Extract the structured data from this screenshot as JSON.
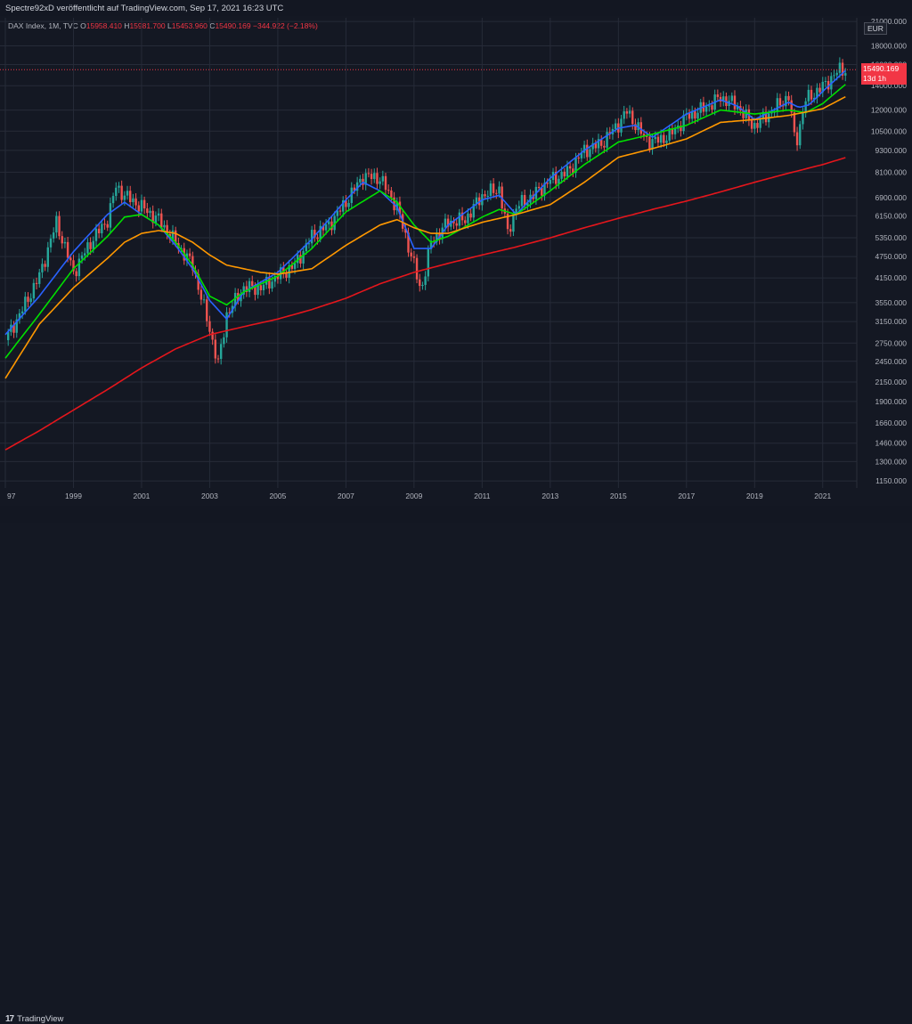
{
  "header": {
    "published": "Spectre92xD veröffentlicht auf TradingView.com, Sep 17, 2021 16:23 UTC"
  },
  "legend": {
    "symbol": "DAX Index, 1M, TVC",
    "o_label": "O",
    "o_value": "15958.410",
    "h_label": "H",
    "h_value": "15981.700",
    "l_label": "L",
    "l_value": "15453.960",
    "c_label": "C",
    "c_value": "15490.169",
    "change": "−344.922 (−2.18%)"
  },
  "price_axis": {
    "currency": "EUR",
    "last_price": "15490.169",
    "countdown": "13d 1h"
  },
  "footer": {
    "brand": "TradingView",
    "logo": "17"
  },
  "colors": {
    "background": "#141823",
    "up": "#26a69a",
    "down": "#ef5350",
    "ma_blue": "#2962ff",
    "ma_green": "#00e000",
    "ma_orange": "#ff9800",
    "ma_red": "#e5161c",
    "grid": "#262b38",
    "text": "#b2b5be"
  },
  "chart_data": {
    "type": "line",
    "title": "DAX Index, 1M, TVC",
    "y_scale": "log",
    "y_ticks": [
      1150,
      1300,
      1460,
      1660,
      1900,
      2150,
      2450,
      2750,
      3150,
      3550,
      4150,
      4750,
      5350,
      6150,
      6900,
      8100,
      9300,
      10500,
      12000,
      14000,
      16000,
      18000,
      21000
    ],
    "y_tick_labels": [
      "1150.000",
      "1300.000",
      "1460.000",
      "1660.000",
      "1900.000",
      "2150.000",
      "2450.000",
      "2750.000",
      "3150.000",
      "3550.000",
      "4150.000",
      "4750.000",
      "5350.000",
      "6150.000",
      "6900.000",
      "8100.000",
      "9300.000",
      "10500.000",
      "12000.000",
      "14000.000",
      "16000.000",
      "18000.000",
      "21000.000"
    ],
    "x_ticks": [
      "97",
      "1999",
      "2001",
      "2003",
      "2005",
      "2007",
      "2009",
      "2011",
      "2013",
      "2015",
      "2017",
      "2019",
      "2021"
    ],
    "x_range": [
      1997.0,
      2022.0
    ],
    "series": [
      {
        "color": "#26a69a",
        "style": "candles",
        "x": [
          1997.0,
          1997.5,
          1998.0,
          1998.5,
          1999.0,
          1999.5,
          2000.0,
          2000.25,
          2000.5,
          2001.0,
          2001.5,
          2002.0,
          2002.5,
          2003.0,
          2003.25,
          2003.5,
          2004.0,
          2004.5,
          2005.0,
          2005.5,
          2006.0,
          2006.5,
          2007.0,
          2007.5,
          2008.0,
          2008.5,
          2009.0,
          2009.2,
          2009.5,
          2010.0,
          2010.5,
          2011.0,
          2011.5,
          2011.75,
          2012.0,
          2012.5,
          2013.0,
          2013.5,
          2014.0,
          2014.5,
          2015.0,
          2015.25,
          2015.75,
          2016.0,
          2016.5,
          2017.0,
          2017.5,
          2018.0,
          2018.5,
          2018.9,
          2019.0,
          2019.5,
          2020.0,
          2020.2,
          2020.5,
          2021.0,
          2021.5,
          2021.7
        ],
        "values": [
          2800,
          3400,
          4200,
          5900,
          4300,
          5200,
          6000,
          7400,
          7000,
          6500,
          6000,
          5200,
          4500,
          3000,
          2400,
          3300,
          3900,
          3900,
          4200,
          4500,
          5400,
          5800,
          6700,
          7900,
          7800,
          6500,
          4500,
          3800,
          5200,
          5900,
          6000,
          7000,
          7300,
          5500,
          6500,
          7000,
          7700,
          8100,
          9300,
          9700,
          11000,
          11900,
          10100,
          9800,
          10200,
          11500,
          12100,
          13000,
          12300,
          11000,
          10900,
          11900,
          13100,
          9600,
          12800,
          13900,
          15500,
          15490
        ]
      },
      {
        "color": "#2962ff",
        "style": "line",
        "x": [
          1997.0,
          1998.0,
          1999.0,
          2000.0,
          2000.5,
          2001.0,
          2001.5,
          2002.0,
          2002.5,
          2003.0,
          2003.5,
          2004.0,
          2005.0,
          2006.0,
          2007.0,
          2007.5,
          2008.0,
          2008.5,
          2009.0,
          2009.5,
          2010.0,
          2011.0,
          2011.5,
          2012.0,
          2013.0,
          2014.0,
          2015.0,
          2015.5,
          2016.0,
          2017.0,
          2018.0,
          2018.5,
          2019.0,
          2020.0,
          2020.3,
          2020.6,
          2021.0,
          2021.7
        ],
        "values": [
          2900,
          3700,
          4900,
          6200,
          6700,
          6200,
          5800,
          5100,
          4400,
          3600,
          3200,
          3800,
          4300,
          5300,
          6800,
          7600,
          7200,
          6500,
          5000,
          5000,
          5800,
          6800,
          7000,
          6200,
          7800,
          9300,
          10700,
          10900,
          10100,
          11700,
          12800,
          12300,
          11300,
          12600,
          12200,
          12400,
          13500,
          15500
        ]
      },
      {
        "color": "#00e000",
        "style": "line",
        "x": [
          1997.0,
          1998.0,
          1999.0,
          2000.0,
          2000.5,
          2001.0,
          2001.5,
          2002.0,
          2002.5,
          2003.0,
          2003.5,
          2004.0,
          2005.0,
          2006.0,
          2007.0,
          2008.0,
          2008.5,
          2009.0,
          2009.5,
          2010.0,
          2011.0,
          2011.5,
          2012.0,
          2013.0,
          2014.0,
          2015.0,
          2016.0,
          2017.0,
          2018.0,
          2019.0,
          2020.0,
          2020.5,
          2021.0,
          2021.7
        ],
        "values": [
          2500,
          3300,
          4400,
          5400,
          6100,
          6200,
          5800,
          5200,
          4500,
          3700,
          3500,
          3800,
          4200,
          5000,
          6300,
          7200,
          6700,
          5800,
          5200,
          5400,
          6100,
          6400,
          6200,
          7200,
          8500,
          9800,
          10300,
          10900,
          12000,
          11700,
          12000,
          11800,
          12500,
          14200
        ]
      },
      {
        "color": "#ff9800",
        "style": "line",
        "x": [
          1997.0,
          1998.0,
          1999.0,
          2000.0,
          2000.5,
          2001.0,
          2001.5,
          2002.0,
          2002.5,
          2003.0,
          2003.5,
          2004.0,
          2004.5,
          2005.0,
          2006.0,
          2007.0,
          2008.0,
          2008.5,
          2009.0,
          2009.5,
          2010.0,
          2011.0,
          2012.0,
          2013.0,
          2014.0,
          2015.0,
          2016.0,
          2017.0,
          2018.0,
          2019.0,
          2020.0,
          2021.0,
          2021.7
        ],
        "values": [
          2200,
          3100,
          3900,
          4700,
          5200,
          5500,
          5600,
          5500,
          5200,
          4800,
          4500,
          4400,
          4300,
          4250,
          4400,
          5100,
          5800,
          6000,
          5700,
          5500,
          5500,
          5900,
          6200,
          6600,
          7600,
          8900,
          9400,
          10000,
          11100,
          11300,
          11600,
          12100,
          13100
        ]
      },
      {
        "color": "#e5161c",
        "style": "line",
        "x": [
          1997.0,
          1998.0,
          1999.0,
          2000.0,
          2001.0,
          2002.0,
          2003.0,
          2004.0,
          2005.0,
          2006.0,
          2007.0,
          2008.0,
          2009.0,
          2010.0,
          2011.0,
          2012.0,
          2013.0,
          2014.0,
          2015.0,
          2016.0,
          2017.0,
          2018.0,
          2019.0,
          2020.0,
          2021.0,
          2021.7
        ],
        "values": [
          1400,
          1580,
          1800,
          2050,
          2350,
          2650,
          2900,
          3050,
          3200,
          3400,
          3650,
          4000,
          4300,
          4550,
          4800,
          5050,
          5350,
          5700,
          6050,
          6400,
          6750,
          7150,
          7600,
          8050,
          8500,
          8900
        ]
      }
    ]
  }
}
